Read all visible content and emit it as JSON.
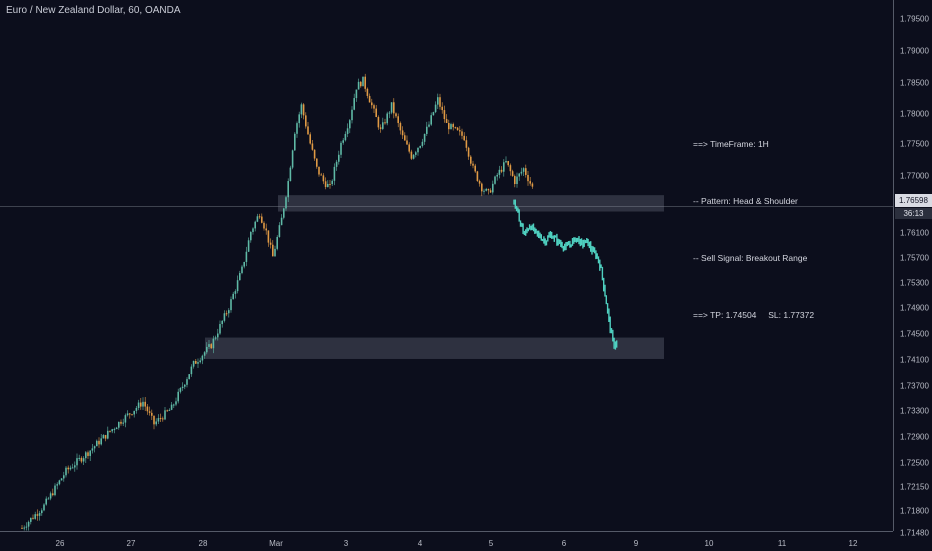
{
  "header": {
    "symbol_title": "Euro / New Zealand Dollar, 60, OANDA"
  },
  "info_box": {
    "lines": [
      "==> TimeFrame: 1H",
      "-- Pattern: Head & Shoulder",
      "-- Sell Signal: Breakout Range",
      "==> TP: 1.74504     SL: 1.77372"
    ]
  },
  "price_axis": {
    "ticks": [
      "1.79500",
      "1.79000",
      "1.78500",
      "1.78000",
      "1.77500",
      "1.77000",
      "1.76100",
      "1.75700",
      "1.75300",
      "1.74900",
      "1.74500",
      "1.74100",
      "1.73700",
      "1.73300",
      "1.72900",
      "1.72500",
      "1.72150",
      "1.71800",
      "1.71480"
    ],
    "last_price": "1.76598",
    "countdown": "36:13"
  },
  "time_axis": {
    "ticks": [
      "26",
      "27",
      "28",
      "Mar",
      "3",
      "4",
      "5",
      "6",
      "9",
      "10",
      "11",
      "12"
    ]
  },
  "colors": {
    "background": "#0c0e1c",
    "candle_up": "#5fb9a6",
    "candle_down": "#e09a45",
    "projection": "#4fd0c0",
    "zone": "#3a3d4c",
    "crosshair": "#8a8f9c"
  },
  "chart_data": {
    "type": "candlestick",
    "symbol": "Euro / New Zealand Dollar",
    "timeframe": "60",
    "source": "OANDA",
    "ylim": [
      1.7145,
      1.7975
    ],
    "current_price": 1.76598,
    "zones": [
      {
        "low": 1.7652,
        "high": 1.7678
      },
      {
        "low": 1.7418,
        "high": 1.7452
      }
    ],
    "path_points": [
      [
        0,
        1.715
      ],
      [
        10,
        1.7185
      ],
      [
        20,
        1.724
      ],
      [
        30,
        1.727
      ],
      [
        45,
        1.732
      ],
      [
        55,
        1.735
      ],
      [
        60,
        1.7315
      ],
      [
        68,
        1.734
      ],
      [
        78,
        1.741
      ],
      [
        86,
        1.744
      ],
      [
        94,
        1.75
      ],
      [
        100,
        1.756
      ],
      [
        104,
        1.762
      ],
      [
        108,
        1.765
      ],
      [
        111,
        1.762
      ],
      [
        114,
        1.758
      ],
      [
        118,
        1.764
      ],
      [
        121,
        1.77
      ],
      [
        124,
        1.778
      ],
      [
        127,
        1.782
      ],
      [
        131,
        1.776
      ],
      [
        134,
        1.772
      ],
      [
        137,
        1.77
      ],
      [
        140,
        1.769
      ],
      [
        145,
        1.776
      ],
      [
        149,
        1.78
      ],
      [
        152,
        1.785
      ],
      [
        155,
        1.786
      ],
      [
        159,
        1.782
      ],
      [
        163,
        1.778
      ],
      [
        168,
        1.782
      ],
      [
        173,
        1.777
      ],
      [
        177,
        1.774
      ],
      [
        181,
        1.776
      ],
      [
        185,
        1.779
      ],
      [
        189,
        1.783
      ],
      [
        193,
        1.779
      ],
      [
        197,
        1.778
      ],
      [
        201,
        1.777
      ],
      [
        205,
        1.772
      ],
      [
        209,
        1.769
      ],
      [
        212,
        1.768
      ],
      [
        216,
        1.771
      ],
      [
        220,
        1.773
      ],
      [
        224,
        1.77
      ],
      [
        228,
        1.772
      ],
      [
        232,
        1.769
      ]
    ],
    "projection_points": [
      [
        0,
        1.7668
      ],
      [
        4,
        1.764
      ],
      [
        8,
        1.7615
      ],
      [
        12,
        1.763
      ],
      [
        16,
        1.762
      ],
      [
        20,
        1.7612
      ],
      [
        24,
        1.7605
      ],
      [
        28,
        1.7615
      ],
      [
        32,
        1.7608
      ],
      [
        36,
        1.76
      ],
      [
        40,
        1.7595
      ],
      [
        44,
        1.7602
      ],
      [
        48,
        1.761
      ],
      [
        52,
        1.76
      ],
      [
        56,
        1.7605
      ],
      [
        60,
        1.759
      ],
      [
        64,
        1.758
      ],
      [
        67,
        1.756
      ],
      [
        70,
        1.752
      ],
      [
        73,
        1.748
      ],
      [
        75,
        1.7455
      ],
      [
        77,
        1.744
      ],
      [
        79,
        1.7445
      ]
    ]
  }
}
